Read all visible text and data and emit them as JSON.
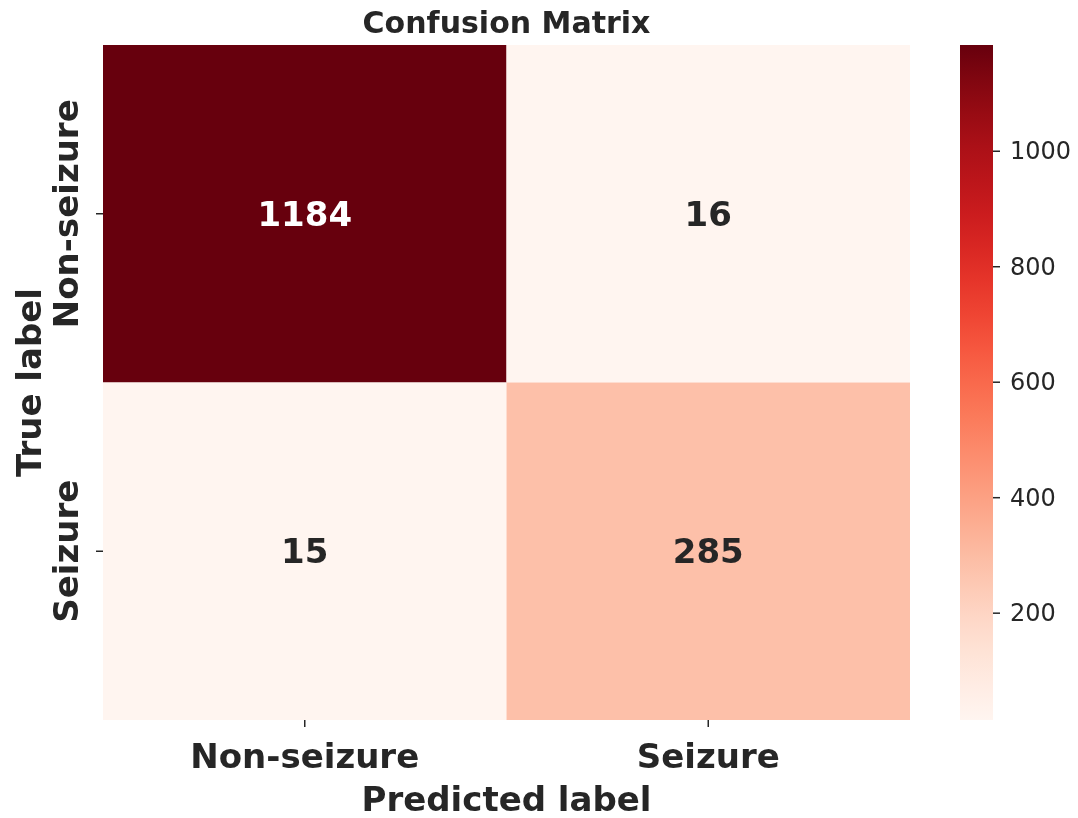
{
  "chart_data": {
    "type": "heatmap",
    "title": "Confusion Matrix",
    "xlabel": "Predicted label",
    "ylabel": "True label",
    "categories": [
      "Non-seizure",
      "Seizure"
    ],
    "y_categories": [
      "Non-seizure",
      "Seizure"
    ],
    "cells": [
      [
        1184,
        16
      ],
      [
        15,
        285
      ]
    ],
    "clim": [
      15,
      1184
    ],
    "cticks": [
      200,
      400,
      600,
      800,
      1000
    ],
    "data_labels": true
  }
}
